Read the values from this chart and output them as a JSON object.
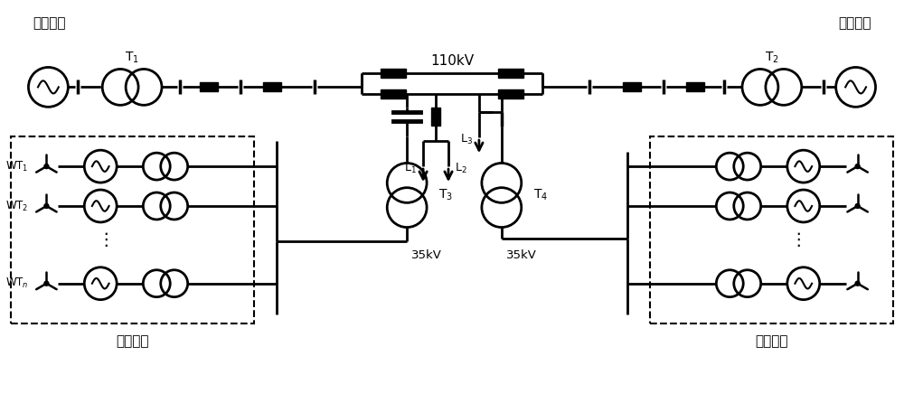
{
  "figsize": [
    10.0,
    4.46
  ],
  "dpi": 100,
  "labels": {
    "huodian1": "火电厂一",
    "huodian2": "火电厂二",
    "fengdian1": "风电场一",
    "fengdian2": "风电场二",
    "T1": "T$_1$",
    "T2": "T$_2$",
    "T3": "T$_3$",
    "T4": "T$_4$",
    "110kV": "110kV",
    "35kV_left": "35kV",
    "35kV_right": "35kV",
    "L1": "L$_1$",
    "L2": "L$_2$",
    "L3": "L$_3$",
    "WT1": "WT$_1$",
    "WT2": "WT$_2$",
    "WTn": "WT$_n$"
  }
}
